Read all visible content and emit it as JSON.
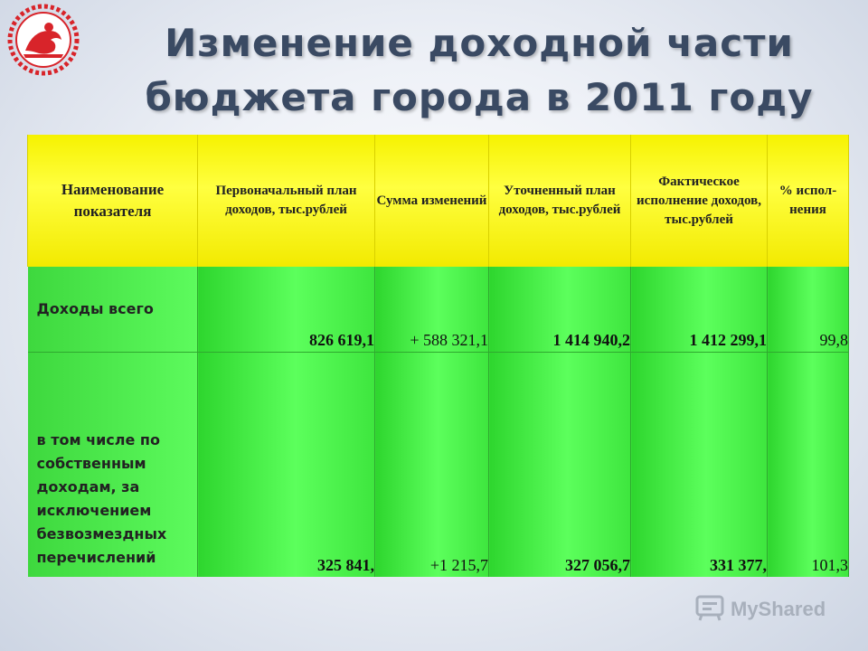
{
  "title": {
    "line1": "Изменение доходной части",
    "line2": "бюджета города в 2011 году"
  },
  "table": {
    "headers": [
      "Наименование показателя",
      "Первоначальный план доходов, тыс.рублей",
      "Сумма изменений",
      "Уточненный план доходов, тыс.рублей",
      "Фактическое исполнение доходов, тыс.рублей",
      "% испол-нения"
    ],
    "rows": [
      {
        "label": "Доходы всего",
        "initial": "826 619,1",
        "change": "+ 588 321,1",
        "revised": "1 414 940,2",
        "actual": "1 412 299,1",
        "percent": "99,8"
      },
      {
        "label": "в том числе по собственным доходам, за исключением безвозмездных перечислений",
        "initial": "325 841,",
        "change": "+1 215,7",
        "revised": "327 056,7",
        "actual": "331 377,",
        "percent": "101,3"
      }
    ]
  },
  "watermark": "MyShared",
  "colors": {
    "header_yellow": "#f6f200",
    "cell_green": "#5cff5c",
    "title_color": "#3a4a63",
    "logo_red": "#d8242a"
  },
  "icons": [
    "city-emblem-logo",
    "myshared-logo-icon"
  ]
}
